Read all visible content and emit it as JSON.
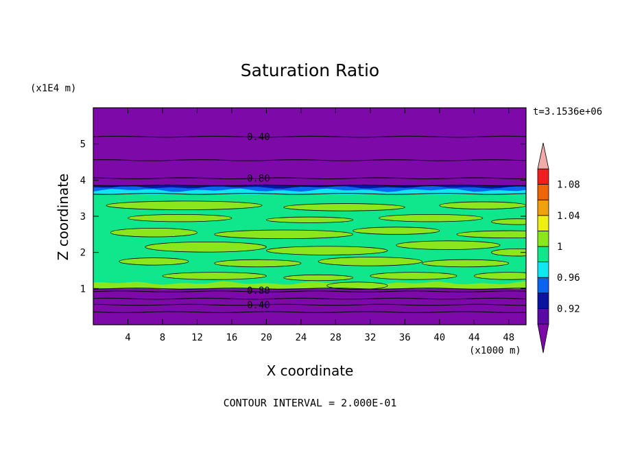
{
  "title": "Saturation Ratio",
  "time_stamp": "t=3.1536e+06",
  "footer": "CONTOUR INTERVAL = 2.000E-01",
  "chart_data": {
    "type": "heatmap",
    "title": "Saturation Ratio",
    "xlabel": "X coordinate",
    "ylabel": "Z coordinate",
    "x_unit": "(x1000 m)",
    "y_unit": "(x1E4 m)",
    "xlim": [
      0,
      50
    ],
    "ylim": [
      0,
      6
    ],
    "x_ticks": [
      4,
      8,
      12,
      16,
      20,
      24,
      28,
      32,
      36,
      40,
      44,
      48
    ],
    "y_ticks": [
      1,
      2,
      3,
      4,
      5
    ],
    "contour_interval": 0.2,
    "contour_labels": [
      {
        "label": "0.40",
        "x": 17.5,
        "z": 5.2
      },
      {
        "label": "0.80",
        "x": 17.5,
        "z": 4.05
      },
      {
        "label": "0.80",
        "x": 17.5,
        "z": 0.95
      },
      {
        "label": "0.40",
        "x": 17.5,
        "z": 0.55
      }
    ],
    "colorbar": {
      "levels": [
        0.9,
        0.92,
        0.94,
        0.96,
        0.98,
        1.0,
        1.02,
        1.04,
        1.06,
        1.08,
        1.1
      ],
      "tick_labels": [
        {
          "label": "0.92",
          "value": 0.92
        },
        {
          "label": "0.96",
          "value": 0.96
        },
        {
          "label": "1",
          "value": 1.0
        },
        {
          "label": "1.04",
          "value": 1.04
        },
        {
          "label": "1.08",
          "value": 1.08
        }
      ],
      "colors": [
        "#5a0aa4",
        "#0a14a0",
        "#0a64f0",
        "#10e6f0",
        "#10e68c",
        "#8ce61e",
        "#f0f010",
        "#f0a00a",
        "#f0640a",
        "#f01e1e"
      ],
      "under_color": "#7d0aa8",
      "over_color": "#f0aaaa"
    },
    "regions": [
      {
        "z_range": [
          0,
          1.0
        ],
        "value": "< 0.90",
        "color": "#7d0aa8"
      },
      {
        "z_range": [
          1.0,
          3.6
        ],
        "value": "0.98 - 1.02",
        "colors": [
          "#10e68c",
          "#8ce61e"
        ]
      },
      {
        "z_range": [
          3.6,
          3.85
        ],
        "value": "0.92 - 0.98",
        "colors": [
          "#10e6f0",
          "#0a64f0",
          "#0a14a0"
        ]
      },
      {
        "z_range": [
          3.85,
          6.0
        ],
        "value": "< 0.90",
        "color": "#7d0aa8"
      }
    ]
  }
}
